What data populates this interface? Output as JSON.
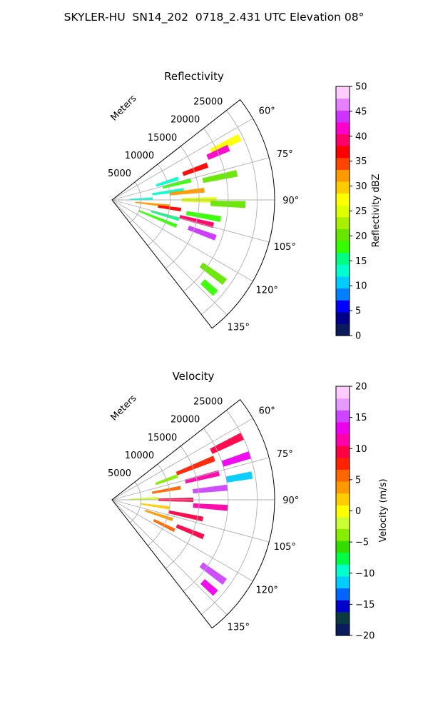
{
  "figure": {
    "suptitle": "SKYLER-HU  SN14_202  0718_2.431 UTC Elevation 08°"
  },
  "chart_data": [
    {
      "type": "heatmap",
      "projection": "polar-sector",
      "title": "Reflectivity",
      "radial_label": "Meters",
      "radial_ticks": [
        "5000",
        "10000",
        "15000",
        "20000",
        "25000"
      ],
      "radial_tick_values": [
        5000,
        10000,
        15000,
        20000,
        25000
      ],
      "range_max": 28000,
      "theta_ticks": [
        "60°",
        "75°",
        "90°",
        "105°",
        "120°",
        "135°"
      ],
      "theta_tick_values": [
        60,
        75,
        90,
        105,
        120,
        135
      ],
      "theta_range": [
        52,
        142
      ],
      "grid": true,
      "colorbar": {
        "label": "Reflectivity dBZ",
        "min": 0,
        "max": 50,
        "ticks": [
          "0",
          "5",
          "10",
          "15",
          "20",
          "25",
          "30",
          "35",
          "40",
          "45",
          "50"
        ],
        "tick_values": [
          0,
          5,
          10,
          15,
          20,
          25,
          30,
          35,
          40,
          45,
          50
        ],
        "colors": [
          "#0a1a5c",
          "#00008b",
          "#0000ff",
          "#0080ff",
          "#00ccff",
          "#00ffcc",
          "#00ff80",
          "#33ff00",
          "#66e600",
          "#a8f000",
          "#ddff00",
          "#ffff00",
          "#ffcc00",
          "#ff9900",
          "#ff4400",
          "#ff0000",
          "#ff0066",
          "#ff00cc",
          "#cc33ff",
          "#e680ff",
          "#ffccff"
        ]
      },
      "cells": [
        {
          "theta": 64,
          "r": [
            19000,
            24500
          ],
          "value": 27
        },
        {
          "theta": 66,
          "r": [
            18000,
            22000
          ],
          "value": 42
        },
        {
          "theta": 70,
          "r": [
            13000,
            17500
          ],
          "value": 38
        },
        {
          "theta": 72,
          "r": [
            8000,
            12000
          ],
          "value": 12
        },
        {
          "theta": 76,
          "r": [
            9000,
            14000
          ],
          "value": 17
        },
        {
          "theta": 78,
          "r": [
            16000,
            22000
          ],
          "value": 21
        },
        {
          "theta": 82,
          "r": [
            7000,
            12500
          ],
          "value": 14
        },
        {
          "theta": 84,
          "r": [
            10000,
            16000
          ],
          "value": 33
        },
        {
          "theta": 88,
          "r": [
            3000,
            7000
          ],
          "value": 13
        },
        {
          "theta": 90,
          "r": [
            12000,
            18000
          ],
          "value": 24
        },
        {
          "theta": 92,
          "r": [
            17000,
            23000
          ],
          "value": 20
        },
        {
          "theta": 96,
          "r": [
            4000,
            10000
          ],
          "value": 31
        },
        {
          "theta": 98,
          "r": [
            8000,
            12000
          ],
          "value": 36
        },
        {
          "theta": 100,
          "r": [
            13000,
            19000
          ],
          "value": 18
        },
        {
          "theta": 104,
          "r": [
            12000,
            18000
          ],
          "value": 40
        },
        {
          "theta": 106,
          "r": [
            7000,
            12000
          ],
          "value": 16
        },
        {
          "theta": 110,
          "r": [
            14000,
            19000
          ],
          "value": 45
        },
        {
          "theta": 112,
          "r": [
            5000,
            12000
          ],
          "value": 19
        },
        {
          "theta": 126,
          "r": [
            19000,
            24000
          ],
          "value": 20
        },
        {
          "theta": 132,
          "r": [
            21000,
            24000
          ],
          "value": 19
        }
      ]
    },
    {
      "type": "heatmap",
      "projection": "polar-sector",
      "title": "Velocity",
      "radial_label": "Meters",
      "radial_ticks": [
        "5000",
        "10000",
        "15000",
        "20000",
        "25000"
      ],
      "radial_tick_values": [
        5000,
        10000,
        15000,
        20000,
        25000
      ],
      "range_max": 28000,
      "theta_ticks": [
        "60°",
        "75°",
        "90°",
        "105°",
        "120°",
        "135°"
      ],
      "theta_tick_values": [
        60,
        75,
        90,
        105,
        120,
        135
      ],
      "theta_range": [
        52,
        142
      ],
      "grid": true,
      "colorbar": {
        "label": "Velocity (m/s)",
        "min": -20,
        "max": 20,
        "ticks": [
          "−20",
          "−15",
          "−10",
          "−5",
          "0",
          "5",
          "10",
          "15",
          "20"
        ],
        "tick_values": [
          -20,
          -15,
          -10,
          -5,
          0,
          5,
          10,
          15,
          20
        ],
        "colors": [
          "#0a1a5c",
          "#0a3a40",
          "#0000cc",
          "#0066ff",
          "#00ccff",
          "#00ffcc",
          "#00ff44",
          "#33dd00",
          "#88ee00",
          "#ccff33",
          "#ffff00",
          "#ffcc00",
          "#ff9900",
          "#ff6600",
          "#ff2200",
          "#ff0044",
          "#ff00aa",
          "#ee00ee",
          "#cc44ff",
          "#e699ff",
          "#ffccff"
        ]
      },
      "cells": [
        {
          "theta": 64,
          "r": [
            19000,
            25000
          ],
          "value": 10
        },
        {
          "theta": 68,
          "r": [
            12000,
            19000
          ],
          "value": 8
        },
        {
          "theta": 70,
          "r": [
            8000,
            12000
          ],
          "value": -4
        },
        {
          "theta": 72,
          "r": [
            20000,
            25000
          ],
          "value": 14
        },
        {
          "theta": 76,
          "r": [
            13000,
            19000
          ],
          "value": 12
        },
        {
          "theta": 80,
          "r": [
            7000,
            12000
          ],
          "value": 5
        },
        {
          "theta": 80,
          "r": [
            20000,
            24500
          ],
          "value": -12
        },
        {
          "theta": 84,
          "r": [
            14000,
            20000
          ],
          "value": 15
        },
        {
          "theta": 88,
          "r": [
            3000,
            8000
          ],
          "value": -2
        },
        {
          "theta": 90,
          "r": [
            8000,
            14000
          ],
          "value": 9
        },
        {
          "theta": 94,
          "r": [
            14000,
            20000
          ],
          "value": 12
        },
        {
          "theta": 98,
          "r": [
            5000,
            10000
          ],
          "value": 2
        },
        {
          "theta": 102,
          "r": [
            10000,
            16000
          ],
          "value": 10
        },
        {
          "theta": 108,
          "r": [
            6000,
            11000
          ],
          "value": 3
        },
        {
          "theta": 112,
          "r": [
            12000,
            17000
          ],
          "value": 9
        },
        {
          "theta": 116,
          "r": [
            8000,
            12000
          ],
          "value": 6
        },
        {
          "theta": 126,
          "r": [
            19000,
            24000
          ],
          "value": 15
        },
        {
          "theta": 132,
          "r": [
            21000,
            24000
          ],
          "value": 14
        }
      ]
    }
  ]
}
